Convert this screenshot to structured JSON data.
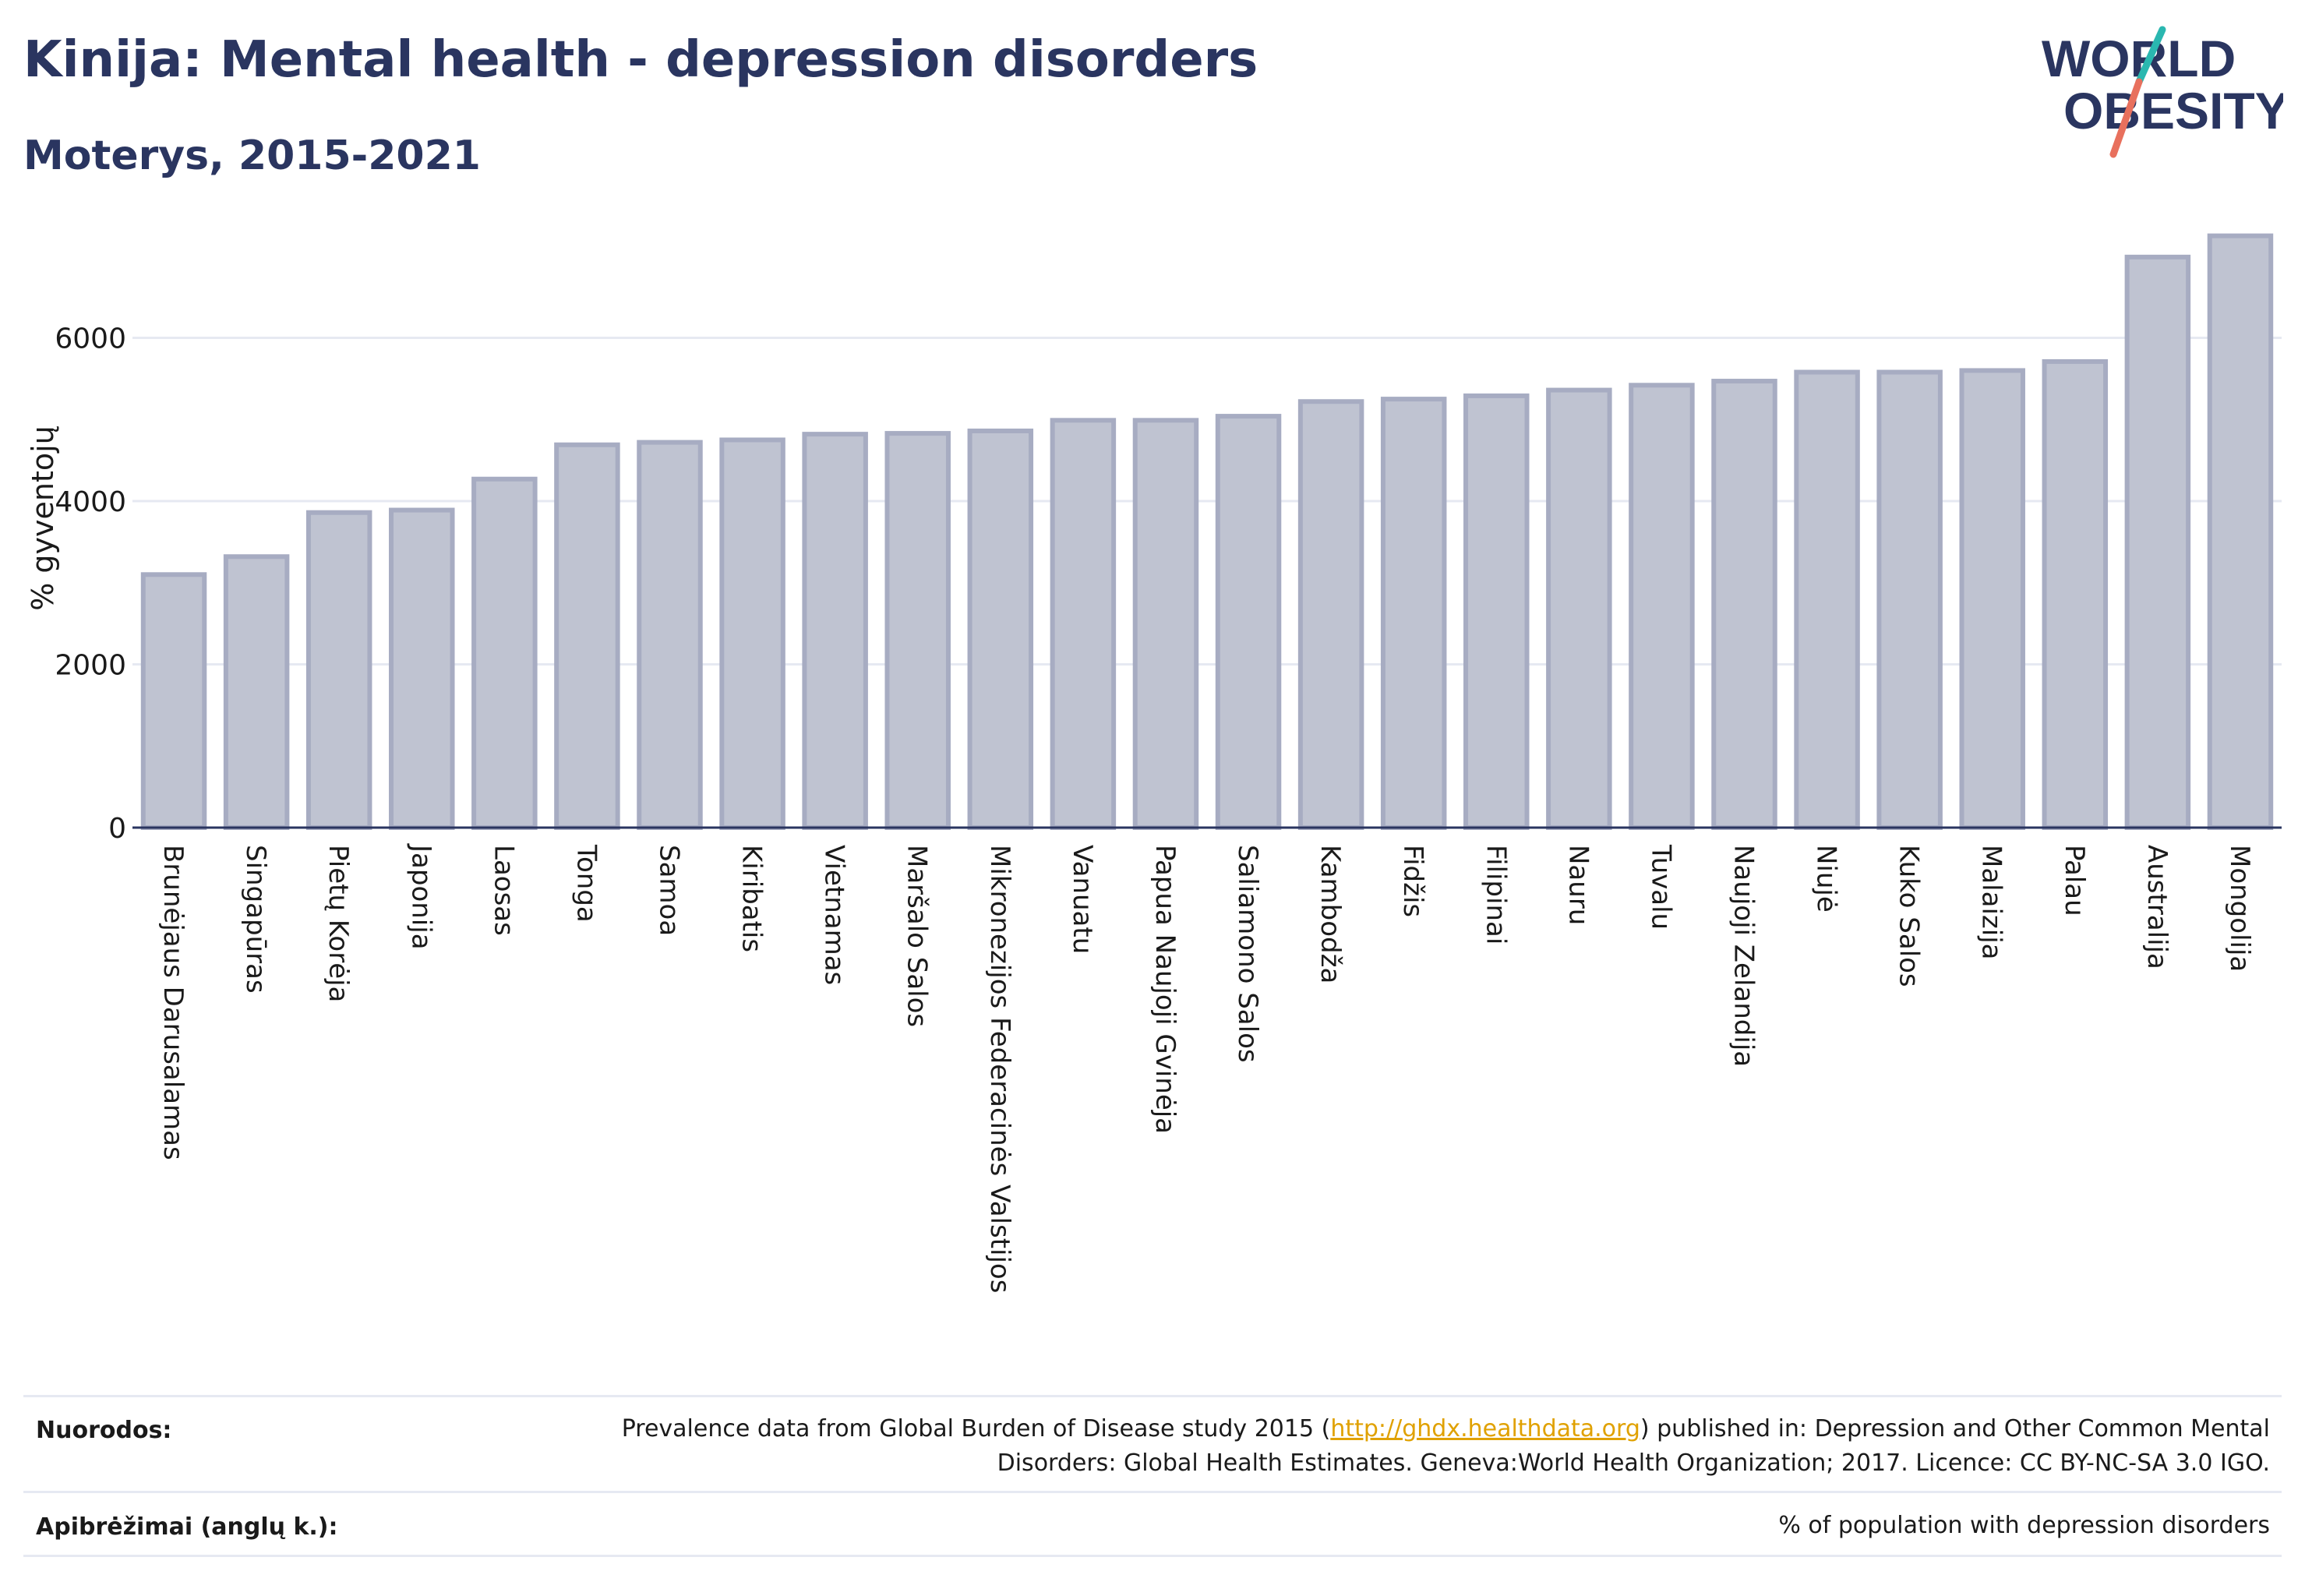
{
  "header": {
    "title": "Kinija: Mental health - depression disorders",
    "subtitle": "Moterys, 2015-2021"
  },
  "logo": {
    "line1": "WORLD",
    "line2": "OBESITY"
  },
  "colors": {
    "text": "#2a3560",
    "bar_fill": "#bfc3d1",
    "bar_stroke": "#a7acc2",
    "grid": "#e6e9f2",
    "logo_teal": "#2ab7b0",
    "logo_coral": "#e8705d",
    "link": "#e0a100"
  },
  "chart_data": {
    "type": "bar",
    "ylabel": "% gyventojų",
    "ylim": [
      0,
      7800
    ],
    "yticks": [
      0,
      2000,
      4000,
      6000
    ],
    "grid": true,
    "categories": [
      "Brunėjaus Darusalamas",
      "Singapūras",
      "Pietų Korėja",
      "Japonija",
      "Laosas",
      "Tonga",
      "Samoa",
      "Kiribatis",
      "Vietnamas",
      "Maršalo Salos",
      "Mikronezijos Federacinės Valstijos",
      "Vanuatu",
      "Papua Naujoji Gvinėja",
      "Saliamono Salos",
      "Kambodža",
      "Fidžis",
      "Filipinai",
      "Nauru",
      "Tuvalu",
      "Naujoji Zelandija",
      "Niujė",
      "Kuko Salos",
      "Malaizija",
      "Palau",
      "Australija",
      "Mongolija"
    ],
    "values": [
      3100,
      3320,
      3860,
      3890,
      4270,
      4690,
      4720,
      4750,
      4820,
      4830,
      4860,
      4990,
      4990,
      5040,
      5220,
      5250,
      5290,
      5360,
      5420,
      5470,
      5580,
      5580,
      5600,
      5710,
      6990,
      7250
    ]
  },
  "footer": {
    "sources_label": "Nuorodos:",
    "sources_pre": "Prevalence data from Global Burden of Disease study 2015 (",
    "sources_link": "http://ghdx.healthdata.org",
    "sources_post": ") published in: Depression and Other Common Mental Disorders: Global Health Estimates. Geneva:World Health Organization; 2017. Licence: CC BY-NC-SA 3.0 IGO.",
    "definitions_label": "Apibrėžimai (anglų k.):",
    "definitions_text": "% of population with depression disorders"
  }
}
